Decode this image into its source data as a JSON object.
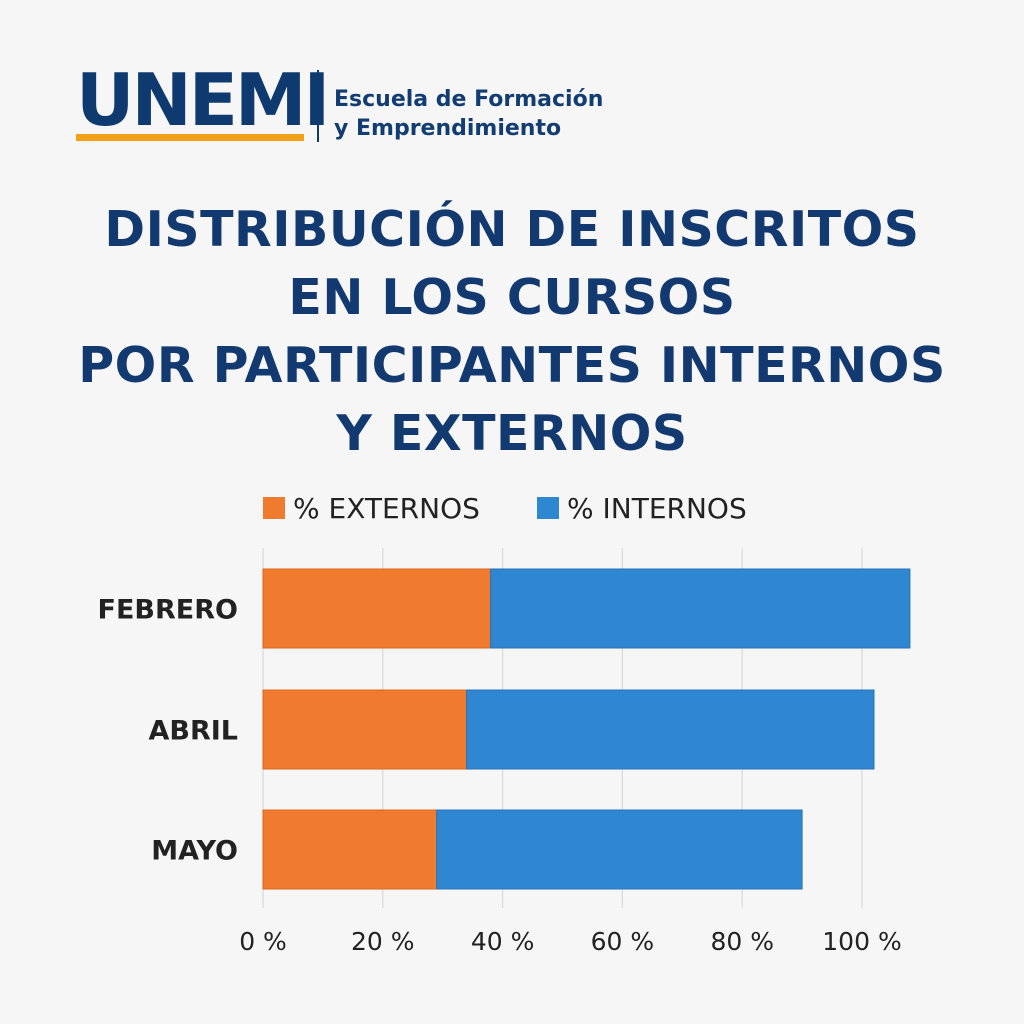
{
  "logo": {
    "wordmark": "UNEMI",
    "subtitle_line1": "Escuela de Formación",
    "subtitle_line2": "y Emprendimiento"
  },
  "colors": {
    "brand_blue": "#0f3a70",
    "brand_orange": "#f3a017",
    "externos": "#f07a2e",
    "internos": "#2f86d1"
  },
  "chart_data": {
    "type": "bar",
    "orientation": "horizontal",
    "stacked": true,
    "title_lines": [
      "DISTRIBUCIÓN DE INSCRITOS",
      "EN LOS CURSOS",
      "POR PARTICIPANTES INTERNOS",
      "Y EXTERNOS"
    ],
    "categories": [
      "FEBRERO",
      "ABRIL",
      "MAYO"
    ],
    "series": [
      {
        "name": "% EXTERNOS",
        "values": [
          38,
          34,
          29
        ]
      },
      {
        "name": "% INTERNOS",
        "values": [
          70,
          68,
          61
        ]
      }
    ],
    "xlim": [
      0,
      100
    ],
    "xticks": [
      0,
      20,
      40,
      60,
      80,
      100
    ],
    "tick_labels": [
      "0 %",
      "20 %",
      "40 %",
      "60 %",
      "80 %",
      "100 %"
    ],
    "grid": true,
    "legend_position": "top"
  }
}
